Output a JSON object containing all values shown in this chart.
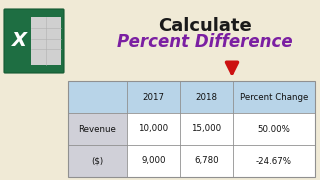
{
  "bg_color": "#f0ead6",
  "title_line1": "Calculate",
  "title_line2": "Percent Difference",
  "title1_color": "#1a1a1a",
  "title2_color": "#7b1fa2",
  "table_headers": [
    "",
    "2017",
    "2018",
    "Percent Change"
  ],
  "table_row1": [
    "Revenue",
    "10,000",
    "15,000",
    "50.00%"
  ],
  "table_row2": [
    "($)",
    "9,000",
    "6,780",
    "-24.67%"
  ],
  "header_bg": "#b8d4e8",
  "row_bg": "#ffffff",
  "label_bg": "#d0d0d8",
  "border_color": "#909090",
  "arrow_color": "#cc1111",
  "excel_dark_green": "#1e6e42",
  "excel_light_green": "#21a366",
  "excel_white": "#ffffff",
  "excel_gray": "#d0d0d0"
}
